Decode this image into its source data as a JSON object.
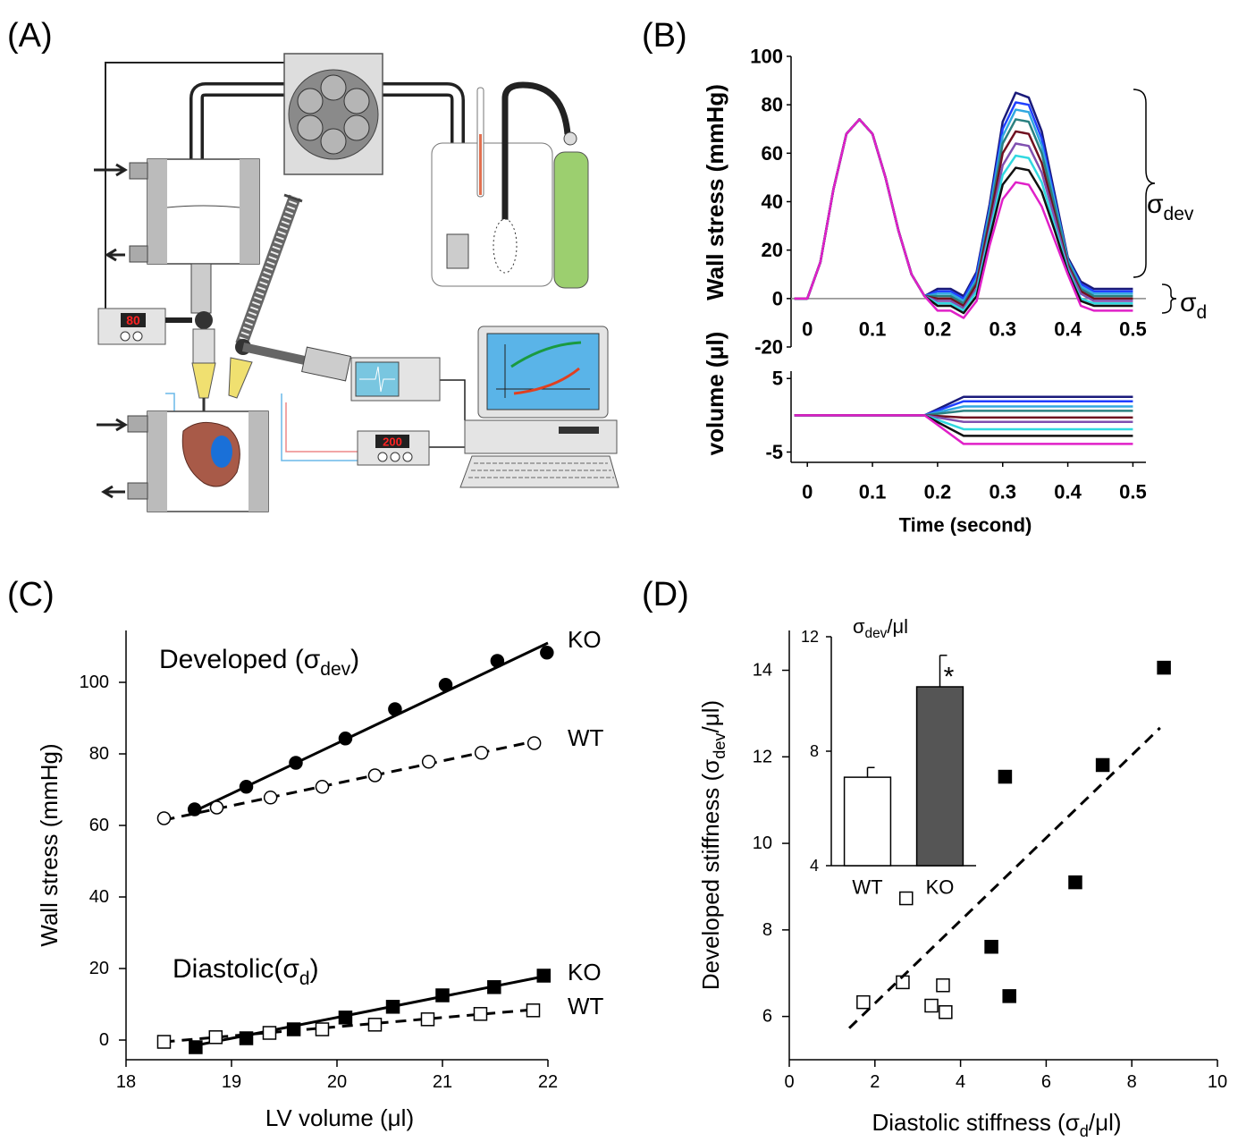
{
  "panel_a": {
    "label": "(A)",
    "displays": [
      "80",
      "200"
    ]
  },
  "chart_data": [
    {
      "type": "line",
      "panel_label": "(B)",
      "y_label": "Wall stress (mmHg)",
      "x": [
        -0.02,
        0,
        0.02,
        0.04,
        0.06,
        0.08,
        0.1,
        0.12,
        0.14,
        0.16,
        0.18,
        0.2,
        0.22,
        0.24,
        0.26,
        0.28,
        0.3,
        0.32,
        0.34,
        0.36,
        0.38,
        0.4,
        0.42,
        0.44,
        0.46,
        0.48,
        0.5
      ],
      "xlim": [
        -0.025,
        0.52
      ],
      "xticks": [
        0,
        0.1,
        0.2,
        0.3,
        0.4,
        0.5
      ],
      "ylim": [
        -20,
        100
      ],
      "yticks": [
        -20,
        0,
        20,
        40,
        60,
        80,
        100
      ],
      "annotations": [
        [
          "σ",
          "dev"
        ],
        [
          "σ",
          "d"
        ]
      ],
      "series": [
        {
          "color": "#1a1a7a",
          "values": [
            0,
            0,
            15,
            45,
            68,
            74,
            68,
            50,
            28,
            10,
            1,
            4,
            4,
            1,
            11,
            39,
            73,
            85,
            83,
            69,
            43,
            17,
            7,
            4,
            4,
            4,
            4
          ]
        },
        {
          "color": "#2040ff",
          "values": [
            0,
            0,
            15,
            45,
            68,
            74,
            68,
            50,
            28,
            10,
            1,
            3,
            3,
            0,
            10,
            37,
            70,
            81,
            80,
            66,
            41,
            16,
            6,
            3,
            3,
            3,
            3
          ]
        },
        {
          "color": "#30a8e0",
          "values": [
            0,
            0,
            15,
            45,
            68,
            74,
            68,
            50,
            28,
            10,
            1,
            2,
            2,
            -1,
            8,
            36,
            67,
            78,
            77,
            63,
            40,
            16,
            5,
            2,
            2,
            2,
            2
          ]
        },
        {
          "color": "#2a8080",
          "values": [
            0,
            0,
            15,
            45,
            68,
            74,
            68,
            50,
            28,
            10,
            1,
            1,
            1,
            -2,
            7,
            34,
            64,
            74,
            73,
            60,
            38,
            15,
            4,
            1,
            1,
            1,
            1
          ]
        },
        {
          "color": "#701020",
          "values": [
            0,
            0,
            15,
            45,
            68,
            74,
            68,
            50,
            28,
            10,
            1,
            0,
            0,
            -3,
            6,
            32,
            60,
            69,
            68,
            56,
            35,
            14,
            3,
            0,
            0,
            0,
            0
          ]
        },
        {
          "color": "#8050b0",
          "values": [
            0,
            0,
            15,
            45,
            68,
            74,
            68,
            50,
            28,
            10,
            1,
            -1,
            -1,
            -4,
            4,
            29,
            55,
            64,
            63,
            52,
            33,
            13,
            2,
            -1,
            -1,
            -1,
            -1
          ]
        },
        {
          "color": "#30d8e0",
          "values": [
            0,
            0,
            15,
            45,
            68,
            74,
            68,
            50,
            28,
            10,
            1,
            -2,
            -2,
            -5,
            3,
            27,
            51,
            59,
            58,
            48,
            30,
            12,
            0,
            -2,
            -2,
            -2,
            -2
          ]
        },
        {
          "color": "#111111",
          "values": [
            0,
            0,
            15,
            45,
            68,
            74,
            68,
            50,
            28,
            10,
            1,
            -3,
            -3,
            -6,
            1,
            25,
            47,
            54,
            53,
            44,
            28,
            11,
            -1,
            -3,
            -3,
            -3,
            -3
          ]
        },
        {
          "color": "#e020c8",
          "values": [
            0,
            0,
            15,
            45,
            68,
            74,
            68,
            50,
            28,
            10,
            1,
            -5,
            -5,
            -8,
            -1,
            22,
            41,
            48,
            47,
            38,
            24,
            10,
            -3,
            -5,
            -5,
            -5,
            -5
          ]
        }
      ]
    },
    {
      "type": "line",
      "y_label": "volume (μl)",
      "x_label": "Time (second)",
      "x": [
        -0.02,
        0.18,
        0.24,
        0.5
      ],
      "xlim": [
        -0.025,
        0.52
      ],
      "xticks": [
        0,
        0.1,
        0.2,
        0.3,
        0.4,
        0.5
      ],
      "ylim": [
        -6.4,
        6
      ],
      "yticks": [
        -5,
        5
      ],
      "series": [
        {
          "color": "#1a1a7a",
          "values": [
            0,
            0,
            2.5,
            2.5
          ]
        },
        {
          "color": "#2040ff",
          "values": [
            0,
            0,
            1.9,
            1.9
          ]
        },
        {
          "color": "#30a8e0",
          "values": [
            0,
            0,
            1.2,
            1.2
          ]
        },
        {
          "color": "#2a8080",
          "values": [
            0,
            0,
            0.6,
            0.6
          ]
        },
        {
          "color": "#701020",
          "values": [
            0,
            0,
            -0.3,
            -0.3
          ]
        },
        {
          "color": "#8050b0",
          "values": [
            0,
            0,
            -0.9,
            -0.9
          ]
        },
        {
          "color": "#30d8e0",
          "values": [
            0,
            0,
            -1.9,
            -1.9
          ]
        },
        {
          "color": "#111111",
          "values": [
            0,
            0,
            -2.8,
            -2.8
          ]
        },
        {
          "color": "#e020c8",
          "values": [
            0,
            0,
            -3.9,
            -3.9
          ]
        }
      ]
    },
    {
      "type": "scatter",
      "panel_label": "(C)",
      "x_label": "LV volume (μl)",
      "y_label": "Wall stress (mmHg)",
      "xlim": [
        18,
        22
      ],
      "xticks": [
        18,
        19,
        20,
        21,
        22
      ],
      "ylim": [
        -5.5,
        114.5
      ],
      "yticks": [
        0,
        20,
        40,
        60,
        80,
        100
      ],
      "groups": [
        {
          "label": [
            "Developed (σ",
            "dev",
            ")"
          ],
          "series": [
            {
              "name": "KO",
              "color": "#000000",
              "marker": "circle",
              "filled": true,
              "x": [
                18.65,
                19.14,
                19.61,
                20.08,
                20.55,
                21.03,
                21.52,
                21.99
              ],
              "values": [
                64.5,
                70.8,
                77.5,
                84.3,
                92.5,
                99.3,
                106,
                108.3
              ],
              "fit": {
                "x": [
                  18.65,
                  22
                ],
                "values": [
                  64,
                  111
                ],
                "dashed": false
              }
            },
            {
              "name": "WT",
              "color": "#000000",
              "marker": "circle",
              "filled": false,
              "x": [
                18.36,
                18.86,
                19.37,
                19.86,
                20.36,
                20.87,
                21.37,
                21.87
              ],
              "values": [
                62,
                65,
                67.8,
                70.8,
                74,
                77.8,
                80.3,
                83
              ],
              "fit": {
                "x": [
                  18.36,
                  21.87
                ],
                "values": [
                  61.5,
                  83.5
                ],
                "dashed": true
              }
            }
          ]
        },
        {
          "label": [
            "Diastolic(σ",
            "d",
            ")"
          ],
          "series": [
            {
              "name": "KO",
              "color": "#000000",
              "marker": "square",
              "filled": true,
              "x": [
                18.66,
                19.14,
                19.59,
                20.08,
                20.53,
                21,
                21.49,
                21.96
              ],
              "values": [
                -2,
                0.5,
                3,
                6.3,
                9.3,
                12.5,
                14.8,
                18
              ],
              "fit": {
                "x": [
                  18.66,
                  22
                ],
                "values": [
                  -1.5,
                  18
                ],
                "dashed": false
              }
            },
            {
              "name": "WT",
              "color": "#000000",
              "marker": "square",
              "filled": false,
              "x": [
                18.36,
                18.85,
                19.36,
                19.86,
                20.36,
                20.86,
                21.36,
                21.86
              ],
              "values": [
                -0.5,
                0.8,
                2,
                3,
                4.3,
                5.8,
                7.3,
                8.3
              ],
              "fit": {
                "x": [
                  18.36,
                  21.86
                ],
                "values": [
                  -0.5,
                  8.5
                ],
                "dashed": true
              }
            }
          ]
        }
      ]
    },
    {
      "type": "scatter",
      "panel_label": "(D)",
      "x_label": [
        "Diastolic stiffness (σ",
        "d",
        "/μl)"
      ],
      "y_label": [
        "Developed stiffness (σ",
        "dev",
        "/μl)"
      ],
      "xlim": [
        0,
        10
      ],
      "xticks": [
        0,
        2,
        4,
        6,
        8,
        10
      ],
      "ylim": [
        5,
        14.92
      ],
      "yticks": [
        6,
        8,
        10,
        12,
        14
      ],
      "groups": [
        {
          "series": [
            {
              "color": "#000000",
              "marker": "square",
              "filled": true,
              "x": [
                8.75,
                5.04,
                7.32,
                6.68,
                4.72,
                5.14
              ],
              "values": [
                14.06,
                11.54,
                11.81,
                9.1,
                7.61,
                6.47
              ]
            },
            {
              "color": "#000000",
              "marker": "square",
              "filled": false,
              "x": [
                2.73,
                2.65,
                1.73,
                3.32,
                3.59,
                3.65
              ],
              "values": [
                8.73,
                6.79,
                6.33,
                6.25,
                6.72,
                6.1
              ]
            }
          ]
        }
      ],
      "fit": {
        "x": [
          1.4,
          8.66
        ],
        "values": [
          5.73,
          12.67
        ],
        "dashed": true
      }
    },
    {
      "type": "bar",
      "y_label": [
        "σ",
        "dev",
        "/μl"
      ],
      "categories": [
        "WT",
        "KO"
      ],
      "values": [
        7.09,
        10.25
      ],
      "errors": [
        0.34,
        1.1
      ],
      "colors": [
        "#ffffff",
        "#555555"
      ],
      "ylim": [
        4,
        12
      ],
      "yticks": [
        4,
        8,
        12
      ],
      "annotation": "*"
    }
  ]
}
